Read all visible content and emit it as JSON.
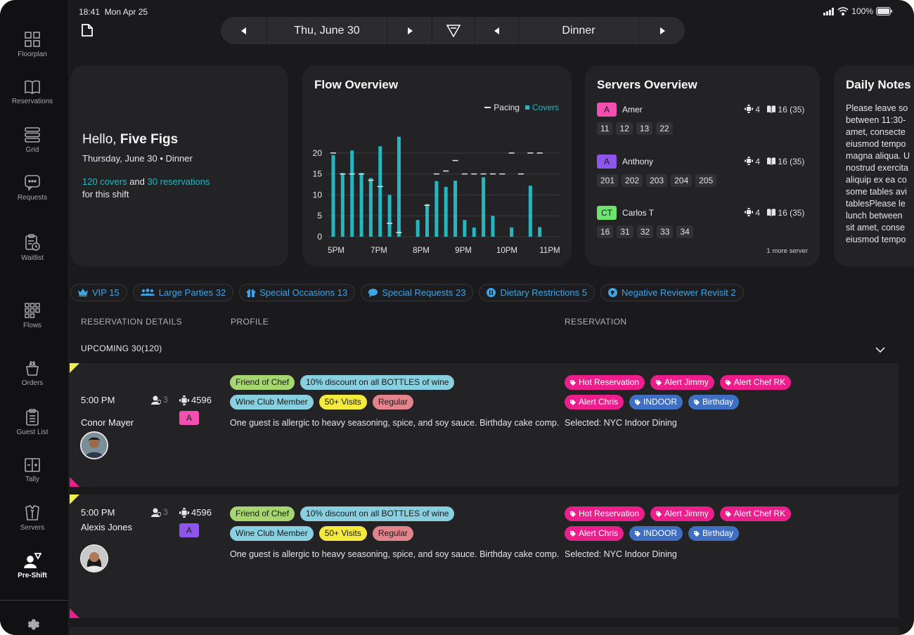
{
  "status_bar": {
    "time": "18:41",
    "date": "Mon Apr 25",
    "battery": "100%"
  },
  "topbar": {
    "date": "Thu, June 30",
    "shift": "Dinner"
  },
  "sidebar": {
    "items": [
      {
        "label": "Floorplan",
        "icon": "floorplan-icon"
      },
      {
        "label": "Reservations",
        "icon": "book-icon"
      },
      {
        "label": "Grid",
        "icon": "grid-icon"
      },
      {
        "label": "Requests",
        "icon": "chat-icon"
      },
      {
        "label": "Waitlist",
        "icon": "clipboard-clock-icon"
      },
      {
        "label": "Flows",
        "icon": "flows-icon"
      },
      {
        "label": "Orders",
        "icon": "orders-icon"
      },
      {
        "label": "Guest List",
        "icon": "guest-list-icon"
      },
      {
        "label": "Tally",
        "icon": "tally-icon"
      },
      {
        "label": "Servers",
        "icon": "servers-icon"
      },
      {
        "label": "Pre-Shift",
        "icon": "pre-shift-icon"
      }
    ]
  },
  "greeting": {
    "hello": "Hello,",
    "name": "Five Figs",
    "subtitle": "Thursday, June 30 • Dinner",
    "covers": "120 covers",
    "and": "and",
    "reservations": "30 reservations",
    "shift_text": "for this shift"
  },
  "flow": {
    "title": "Flow Overview",
    "legend_pacing": "Pacing",
    "legend_covers": "Covers"
  },
  "chart_data": {
    "type": "bar",
    "title": "Flow Overview",
    "x_ticks": [
      "5PM",
      "7PM",
      "8PM",
      "9PM",
      "10PM",
      "11PM"
    ],
    "y_ticks": [
      "0",
      "5",
      "10",
      "15",
      "20"
    ],
    "ylim": [
      0,
      24
    ],
    "series": [
      {
        "name": "Covers",
        "values": [
          19.5,
          15.2,
          20.6,
          15.2,
          14,
          21.6,
          10,
          23.9,
          0,
          4,
          7.8,
          13.3,
          11.9,
          13.4,
          4,
          2.2,
          14.2,
          5,
          0,
          2.2,
          0,
          12.2,
          2.3
        ]
      },
      {
        "name": "Pacing",
        "values": [
          20,
          15,
          15,
          15,
          13.5,
          12,
          3.2,
          1,
          null,
          null,
          7.5,
          15,
          15.7,
          18.2,
          15,
          15,
          15,
          15,
          15,
          20,
          15,
          20,
          20
        ]
      }
    ],
    "colors": {
      "covers": "#25b6c0",
      "pacing": "#e6e6e6"
    }
  },
  "servers": {
    "title": "Servers Overview",
    "list": [
      {
        "initial": "A",
        "name": "Amer",
        "covers": "4",
        "tables_count": "16 (35)",
        "color": "#f24fb0",
        "tables": [
          "11",
          "12",
          "13",
          "22"
        ]
      },
      {
        "initial": "A",
        "name": "Anthony",
        "covers": "4",
        "tables_count": "16 (35)",
        "color": "#8e55ea",
        "tables": [
          "201",
          "202",
          "203",
          "204",
          "205"
        ]
      },
      {
        "initial": "CT",
        "name": "Carlos T",
        "covers": "4",
        "tables_count": "16 (35)",
        "color": "#6fe36f",
        "tables": [
          "16",
          "31",
          "32",
          "33",
          "34"
        ]
      }
    ],
    "more": "1 more server"
  },
  "notes": {
    "title": "Daily Notes",
    "lines": [
      "Please leave so",
      "between 11:30-",
      "amet, consecte",
      "eiusmod tempo",
      "magna aliqua. U",
      "nostrud exercita",
      "aliquip ex ea co",
      "some tables avi",
      "tablesPlease le",
      "lunch between",
      "sit amet, conse",
      "eiusmod tempo"
    ]
  },
  "filters": [
    {
      "label": "VIP 15",
      "icon": "crown-icon"
    },
    {
      "label": "Large Parties 32",
      "icon": "people-icon"
    },
    {
      "label": "Special Occasions 13",
      "icon": "gift-icon"
    },
    {
      "label": "Special Requests 23",
      "icon": "speech-bubble-icon"
    },
    {
      "label": "Dietary Restrictions 5",
      "icon": "fork-knife-icon"
    },
    {
      "label": "Negative Reviewer Revisit 2",
      "icon": "thumbs-down-icon"
    }
  ],
  "columns": {
    "details": "RESERVATION DETAILS",
    "profile": "PROFILE",
    "reservation": "RESERVATION"
  },
  "upcoming": "UPCOMING 30(120)",
  "reservations": [
    {
      "time": "5:00 PM",
      "name": "Conor Mayer",
      "party": "3",
      "table": "4596",
      "server": "A",
      "server_color": "#f24fb0",
      "profile_tags": [
        {
          "label": "Friend of Chef",
          "color": "#a6d66f"
        },
        {
          "label": "10% discount on all BOTTLES of wine",
          "color": "#88cfe0"
        },
        {
          "label": "Wine Club Member",
          "color": "#88cfe0"
        },
        {
          "label": "50+ Visits",
          "color": "#f4ea3e"
        },
        {
          "label": "Regular",
          "color": "#e3848c"
        }
      ],
      "note": "One guest is allergic to heavy seasoning, spice, and soy sauce. Birthday cake comp.",
      "res_tags": [
        {
          "label": "Hot Reservation",
          "color": "#ec1e8c"
        },
        {
          "label": "Alert Jimmy",
          "color": "#ec1e8c"
        },
        {
          "label": "Alert Chef RK",
          "color": "#ec1e8c"
        },
        {
          "label": "Alert Chris",
          "color": "#ec1e8c"
        },
        {
          "label": "INDOOR",
          "color": "#3f6fc2"
        },
        {
          "label": "Birthday",
          "color": "#3f6fc2"
        }
      ],
      "selected": "Selected: NYC Indoor Dining"
    },
    {
      "time": "5:00 PM",
      "name": "Alexis Jones",
      "party": "3",
      "table": "4596",
      "server": "A",
      "server_color": "#8e55ea",
      "profile_tags": [
        {
          "label": "Friend of Chef",
          "color": "#a6d66f"
        },
        {
          "label": "10% discount on all BOTTLES of wine",
          "color": "#88cfe0"
        },
        {
          "label": "Wine Club Member",
          "color": "#88cfe0"
        },
        {
          "label": "50+ Visits",
          "color": "#f4ea3e"
        },
        {
          "label": "Regular",
          "color": "#e3848c"
        }
      ],
      "note": "One guest is allergic to heavy seasoning, spice, and soy sauce. Birthday cake comp.",
      "res_tags": [
        {
          "label": "Hot Reservation",
          "color": "#ec1e8c"
        },
        {
          "label": "Alert Jimmy",
          "color": "#ec1e8c"
        },
        {
          "label": "Alert Chef RK",
          "color": "#ec1e8c"
        },
        {
          "label": "Alert Chris",
          "color": "#ec1e8c"
        },
        {
          "label": "INDOOR",
          "color": "#3f6fc2"
        },
        {
          "label": "Birthday",
          "color": "#3f6fc2"
        }
      ],
      "selected": "Selected: NYC Indoor Dining"
    }
  ]
}
